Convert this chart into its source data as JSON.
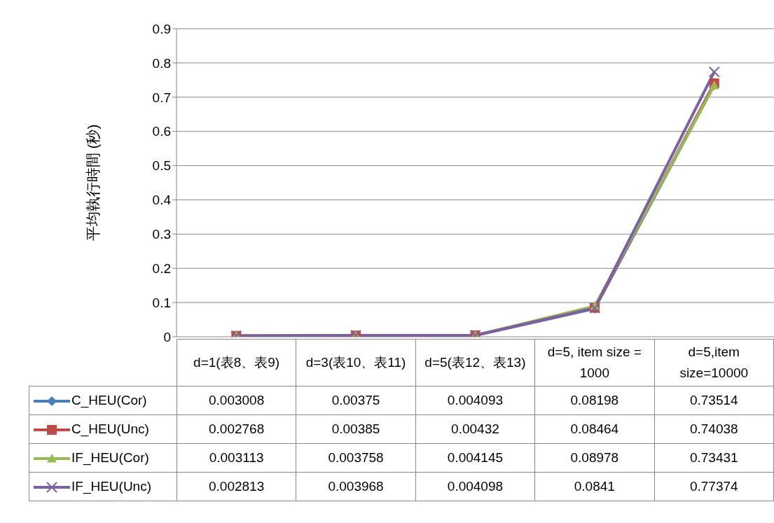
{
  "chart_data": {
    "type": "line",
    "ylabel": "平均執行時間 (秒)",
    "categories": [
      "d=1(表8、表9)",
      "d=3(表10、表11)",
      "d=5(表12、表13)",
      "d=5, item size = 1000",
      "d=5,item size=10000"
    ],
    "series": [
      {
        "name": "C_HEU(Cor)",
        "color": "#4a7ebb",
        "marker": "diamond",
        "values": [
          0.003008,
          0.00375,
          0.004093,
          0.08198,
          0.73514
        ]
      },
      {
        "name": "C_HEU(Unc)",
        "color": "#be4b48",
        "marker": "square",
        "values": [
          0.002768,
          0.00385,
          0.00432,
          0.08464,
          0.74038
        ]
      },
      {
        "name": "IF_HEU(Cor)",
        "color": "#98b954",
        "marker": "triangle",
        "values": [
          0.003113,
          0.003758,
          0.004145,
          0.08978,
          0.73431
        ]
      },
      {
        "name": "IF_HEU(Unc)",
        "color": "#7d60a0",
        "marker": "cross",
        "values": [
          0.002813,
          0.003968,
          0.004098,
          0.0841,
          0.77374
        ]
      }
    ],
    "ylim": [
      0,
      0.9
    ],
    "yticks": [
      0,
      0.1,
      0.2,
      0.3,
      0.4,
      0.5,
      0.6,
      0.7,
      0.8,
      0.9
    ],
    "grid": "y",
    "legend": "bottom",
    "data_labels": true,
    "line_style": "solid"
  }
}
